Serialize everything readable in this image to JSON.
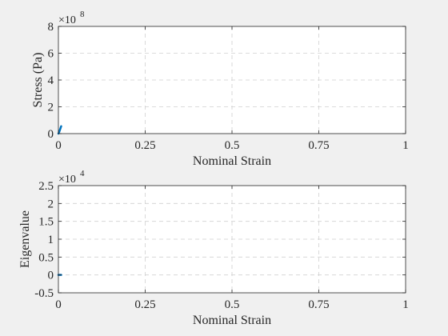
{
  "chart_data": [
    {
      "type": "line",
      "xlabel": "Nominal Strain",
      "ylabel": "Stress (Pa)",
      "xlim": [
        0,
        1
      ],
      "ylim": [
        0,
        8
      ],
      "y_exponent_base": "×10",
      "y_exponent_power": "8",
      "xticks": [
        "0",
        "0.25",
        "0.5",
        "0.75",
        "1"
      ],
      "yticks": [
        "0",
        "2",
        "4",
        "6",
        "8"
      ],
      "grid": true,
      "series": [
        {
          "color": "#0072BD",
          "x": [
            0,
            0.002,
            0.004,
            0.006,
            0.008
          ],
          "y": [
            0,
            0.1,
            0.25,
            0.4,
            0.55
          ]
        }
      ]
    },
    {
      "type": "line",
      "xlabel": "Nominal Strain",
      "ylabel": "Eigenvalue",
      "xlim": [
        0,
        1
      ],
      "ylim": [
        -0.5,
        2.5
      ],
      "y_exponent_base": "×10",
      "y_exponent_power": "4",
      "xticks": [
        "0",
        "0.25",
        "0.5",
        "0.75",
        "1"
      ],
      "yticks": [
        "-0.5",
        "0",
        "0.5",
        "1",
        "1.5",
        "2",
        "2.5"
      ],
      "grid": true,
      "series": [
        {
          "color": "#0072BD",
          "x": [
            0,
            0.002,
            0.004,
            0.006,
            0.008
          ],
          "y": [
            0,
            0,
            0,
            0,
            0
          ]
        }
      ]
    }
  ]
}
